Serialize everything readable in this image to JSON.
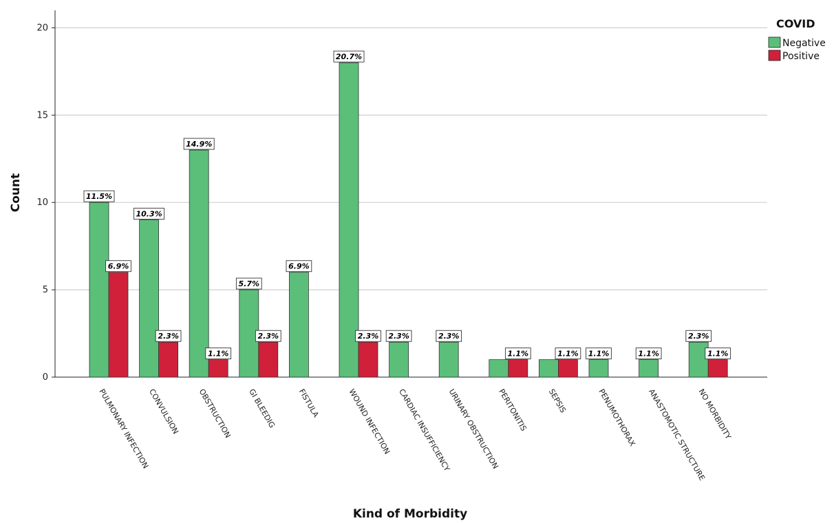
{
  "chart_data": {
    "type": "bar",
    "xlabel": "Kind of Morbidity",
    "ylabel": "Count",
    "ylim": [
      0,
      21
    ],
    "yticks": [
      0,
      5,
      10,
      15,
      20
    ],
    "grid": true,
    "legend_position": "top-right",
    "legend_title": "COVID",
    "categories": [
      "PULMONARY INFECTION",
      "CONVULSION",
      "OBSTRUCTION",
      "GI BLEEDIG",
      "FISTULA",
      "WOUND INFECTION",
      "CARDIAC INSUFFICIENCY",
      "URINARY OBSTRUCTION",
      "PERITONITIS",
      "SEPSIS",
      "PENUMOTHORAX",
      "ANASTOMOTIC STRUCTURE",
      "NO MORBIDITY"
    ],
    "series": [
      {
        "name": "Negative",
        "color": "#5bbf7a",
        "values": [
          10,
          9,
          13,
          5,
          6,
          18,
          2,
          2,
          1,
          1,
          1,
          1,
          2
        ],
        "labels": [
          "11.5%",
          "10.3%",
          "14.9%",
          "5.7%",
          "6.9%",
          "20.7%",
          "2.3%",
          "2.3%",
          null,
          null,
          "1.1%",
          "1.1%",
          "2.3%"
        ]
      },
      {
        "name": "Positive",
        "color": "#d0203a",
        "values": [
          6,
          2,
          1,
          2,
          0,
          2,
          0,
          0,
          1,
          1,
          0,
          0,
          1
        ],
        "labels": [
          "6.9%",
          "2.3%",
          "1.1%",
          "2.3%",
          null,
          "2.3%",
          null,
          null,
          "1.1%",
          "1.1%",
          null,
          null,
          "1.1%"
        ]
      }
    ]
  }
}
